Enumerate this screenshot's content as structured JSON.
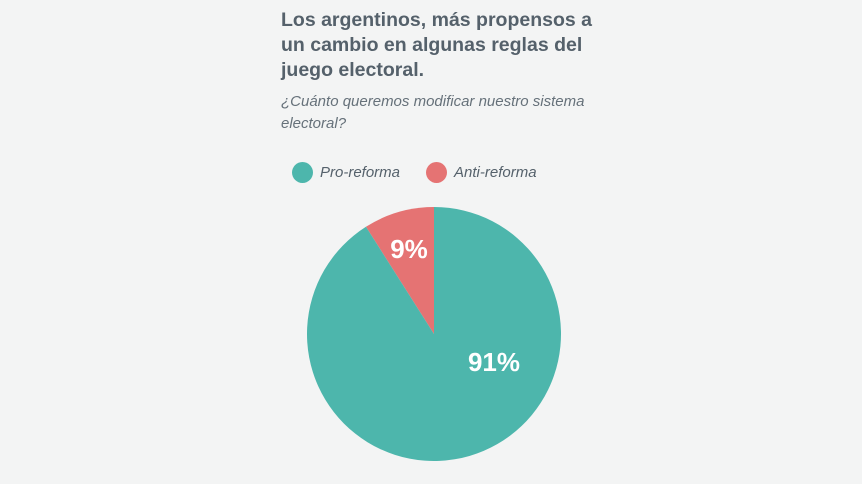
{
  "chart_data": {
    "type": "pie",
    "title": "Los argentinos, más propensos a un cambio en algunas reglas del juego electoral.",
    "subtitle": "¿Cuánto queremos modificar nuestro sistema electoral?",
    "slices": [
      {
        "name": "Anti-reforma",
        "value": 9,
        "label": "9%",
        "color": "#e57373"
      },
      {
        "name": "Pro-reforma",
        "value": 91,
        "label": "91%",
        "color": "#4db6ac"
      }
    ],
    "legend": [
      {
        "name": "Pro-reforma",
        "color": "#4db6ac"
      },
      {
        "name": "Anti-reforma",
        "color": "#e57373"
      }
    ],
    "legend_position": "top"
  }
}
